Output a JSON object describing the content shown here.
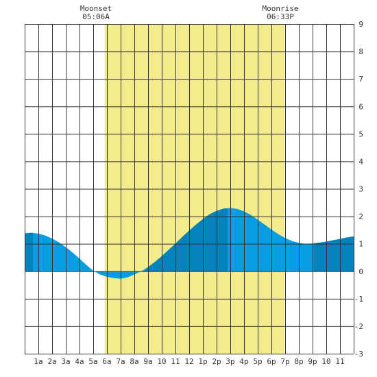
{
  "chart_data": {
    "type": "area",
    "title": "",
    "xlabel": "",
    "ylabel": "",
    "xlim": [
      0,
      24
    ],
    "ylim": [
      -3,
      9
    ],
    "grid": true,
    "x_tick_labels": [
      "1a",
      "2a",
      "3a",
      "4a",
      "5a",
      "6a",
      "7a",
      "8a",
      "9a",
      "10",
      "11",
      "12",
      "1p",
      "2p",
      "3p",
      "4p",
      "5p",
      "6p",
      "7p",
      "8p",
      "9p",
      "10",
      "11"
    ],
    "y_tick_labels": [
      "9",
      "8",
      "7",
      "6",
      "5",
      "4",
      "3",
      "2",
      "1",
      "0",
      "-1",
      "-2",
      "-3"
    ],
    "daylight": {
      "start": "05:50",
      "end": "18:57"
    },
    "annotations": [
      {
        "event": "Moonset",
        "time": "05:06A",
        "x": 5.1
      },
      {
        "event": "Moonrise",
        "time": "06:33P",
        "x": 18.55
      }
    ],
    "shading_bands": [
      {
        "x0": 0.0,
        "x1": 0.6,
        "shade": "dark"
      },
      {
        "x0": 8.8,
        "x1": 14.8,
        "shade": "dark"
      },
      {
        "x0": 21.1,
        "x1": 24.0,
        "shade": "dark"
      }
    ],
    "series": [
      {
        "x": [
          0,
          0.5,
          1,
          1.5,
          2,
          2.5,
          3,
          3.5,
          4,
          4.5,
          5,
          5.5,
          6,
          6.5,
          7,
          7.5,
          8,
          8.5,
          9,
          9.5,
          10,
          10.5,
          11,
          11.5,
          12,
          12.5,
          13,
          13.5,
          14,
          14.5,
          15,
          15.5,
          16,
          16.5,
          17,
          17.5,
          18,
          18.5,
          19,
          19.5,
          20,
          20.5,
          21,
          21.5,
          22,
          22.5,
          23,
          23.5,
          24
        ],
        "values": [
          1.38,
          1.4,
          1.37,
          1.3,
          1.19,
          1.05,
          0.88,
          0.68,
          0.46,
          0.23,
          0.02,
          -0.12,
          -0.2,
          -0.25,
          -0.27,
          -0.22,
          -0.12,
          0.0,
          0.15,
          0.34,
          0.55,
          0.78,
          1.01,
          1.25,
          1.48,
          1.7,
          1.9,
          2.08,
          2.2,
          2.28,
          2.3,
          2.27,
          2.18,
          2.05,
          1.88,
          1.7,
          1.52,
          1.35,
          1.21,
          1.1,
          1.03,
          1.0,
          1.01,
          1.04,
          1.08,
          1.13,
          1.18,
          1.23,
          1.27
        ]
      }
    ],
    "colors": {
      "daylight": "#f2ec8c",
      "tide_light": "#069ee2",
      "tide_dark": "#0382bd",
      "grid": "#333333",
      "text": "#333333"
    }
  }
}
